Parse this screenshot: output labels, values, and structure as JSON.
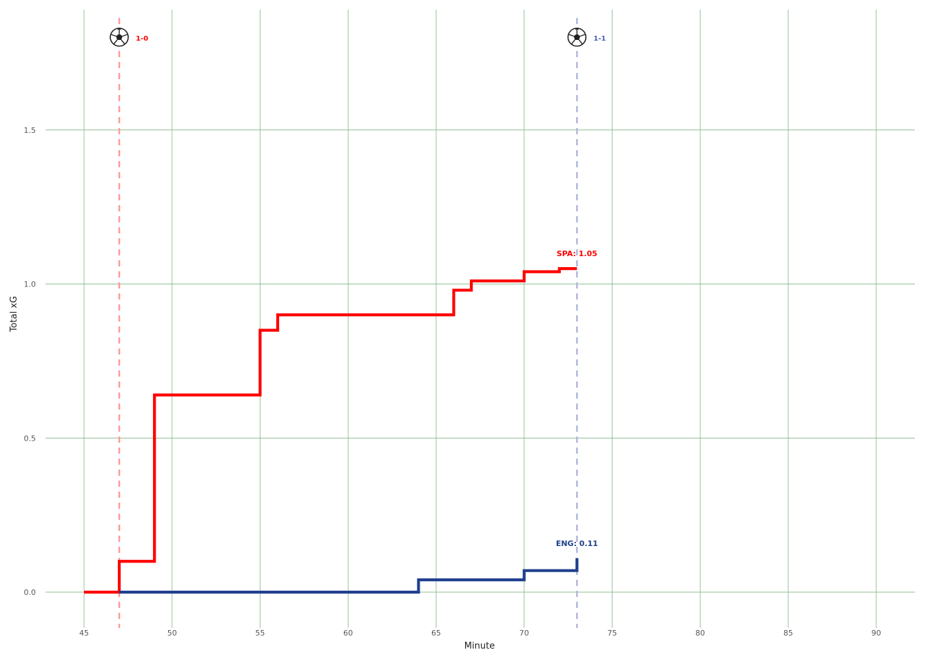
{
  "chart_data": {
    "type": "line",
    "title": "",
    "xlabel": "Minute",
    "ylabel": "Total xG",
    "xlim": [
      43,
      92.5
    ],
    "ylim": [
      -0.09,
      1.9
    ],
    "xticks": [
      45,
      50,
      55,
      60,
      65,
      70,
      75,
      80,
      85,
      90
    ],
    "yticks": [
      0.0,
      0.5,
      1.0,
      1.5
    ],
    "ytick_labels": [
      "0.0",
      "0.5",
      "1.0",
      "1.5"
    ],
    "grid": true,
    "colors": {
      "grid": "#8fbc8f"
    },
    "series": [
      {
        "name": "SPA",
        "color": "#ff0000",
        "step": true,
        "x": [
          45,
          47,
          49,
          55,
          56,
          66,
          67,
          70,
          72,
          73
        ],
        "y": [
          0.0,
          0.1,
          0.64,
          0.85,
          0.9,
          0.98,
          1.01,
          1.04,
          1.05,
          1.05
        ],
        "end_label": "SPA: 1.05"
      },
      {
        "name": "ENG",
        "color": "#1f3f8f",
        "step": true,
        "x": [
          47,
          64,
          70,
          73
        ],
        "y": [
          0.0,
          0.04,
          0.07,
          0.11
        ],
        "end_label": "ENG: 0.11"
      }
    ],
    "goals": [
      {
        "minute": 47,
        "score": "1-0",
        "color": "#ff9999",
        "label_color": "#ff0000",
        "icon": "soccer-ball-icon"
      },
      {
        "minute": 73,
        "score": "1-1",
        "color": "#b0b8d8",
        "label_color": "#4a5fb0",
        "icon": "soccer-ball-icon"
      }
    ]
  }
}
